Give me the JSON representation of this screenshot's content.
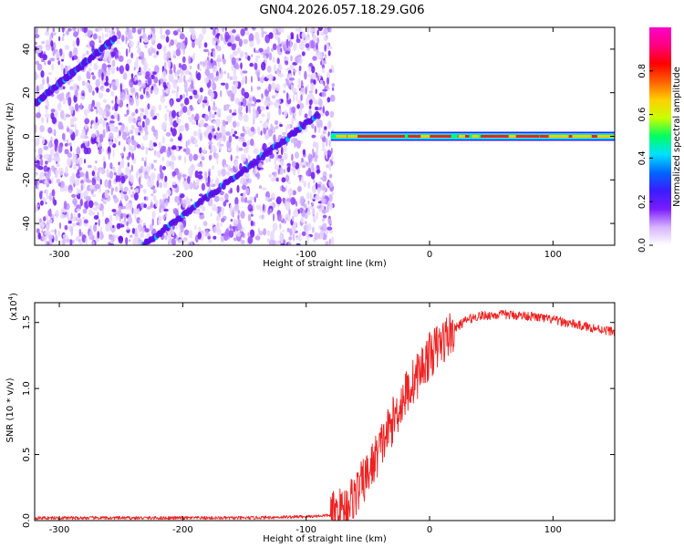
{
  "title": "GN04.2026.057.18.29.G06",
  "chart_data": [
    {
      "type": "heatmap",
      "xlabel": "Height of straight line (km)",
      "ylabel": "Frequency (Hz)",
      "xlim": [
        -320,
        150
      ],
      "ylim": [
        -50,
        50
      ],
      "x_ticks": [
        -300,
        -200,
        -100,
        0,
        100
      ],
      "y_ticks": [
        -40,
        -20,
        0,
        20,
        40
      ],
      "colorbar": {
        "label": "Normalized spectral amplitude",
        "range": [
          0,
          1
        ],
        "ticks": [
          0.0,
          0.2,
          0.4,
          0.6,
          0.8
        ],
        "colormap": [
          "#ffffff",
          "#d6b3ff",
          "#7a1cff",
          "#3a1cff",
          "#0066ff",
          "#00e0ff",
          "#00ff60",
          "#c8ff00",
          "#ffd000",
          "#ff6000",
          "#ff0000",
          "#ff0080",
          "#ff00c8"
        ]
      },
      "features": [
        {
          "name": "carrier",
          "from_x": -80,
          "to_x": 150,
          "freq": 0
        },
        {
          "name": "diagonal-track-1",
          "from": [
            -232,
            -50
          ],
          "to": [
            -90,
            10
          ]
        },
        {
          "name": "diagonal-track-2",
          "from": [
            -320,
            15
          ],
          "to": [
            -255,
            45
          ]
        }
      ]
    },
    {
      "type": "line",
      "xlabel": "Height of straight line (km)",
      "ylabel": "SNR (10 * v/v)",
      "y_multiplier": "(x10",
      "y_multiplier_exp": "4",
      "xlim": [
        -320,
        150
      ],
      "ylim": [
        0,
        1.65
      ],
      "x_ticks": [
        -300,
        -200,
        -100,
        0,
        100
      ],
      "y_ticks": [
        "0.0",
        "0.5",
        "1.0",
        "1.5"
      ],
      "series": [
        {
          "color": "#ee2222",
          "points": [
            [
              -320,
              0.02
            ],
            [
              -250,
              0.02
            ],
            [
              -150,
              0.02
            ],
            [
              -100,
              0.03
            ],
            [
              -80,
              0.04
            ],
            [
              -70,
              0.08
            ],
            [
              -60,
              0.2
            ],
            [
              -50,
              0.35
            ],
            [
              -40,
              0.55
            ],
            [
              -30,
              0.75
            ],
            [
              -20,
              0.95
            ],
            [
              -10,
              1.1
            ],
            [
              0,
              1.25
            ],
            [
              10,
              1.35
            ],
            [
              20,
              1.45
            ],
            [
              30,
              1.52
            ],
            [
              40,
              1.55
            ],
            [
              60,
              1.56
            ],
            [
              80,
              1.55
            ],
            [
              100,
              1.52
            ],
            [
              120,
              1.48
            ],
            [
              150,
              1.43
            ]
          ]
        }
      ]
    }
  ]
}
